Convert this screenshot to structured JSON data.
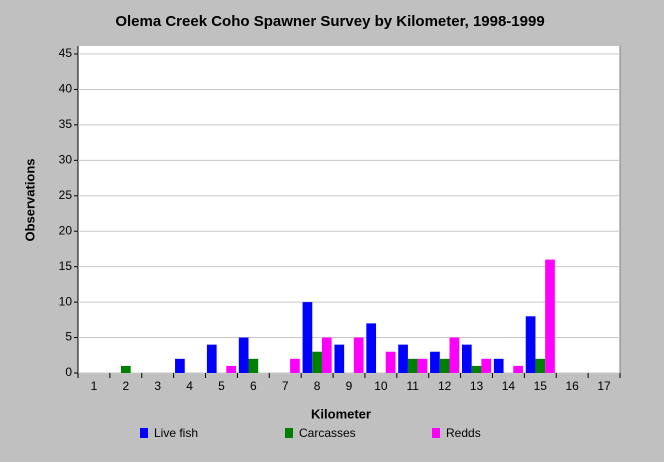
{
  "chart_data": {
    "type": "bar",
    "title": "Olema Creek Coho Spawner Survey by Kilometer, 1998-1999",
    "x_label": "Kilometer",
    "y_label": "Observations",
    "categories": [
      "1",
      "2",
      "3",
      "4",
      "5",
      "6",
      "7",
      "8",
      "9",
      "10",
      "11",
      "12",
      "13",
      "14",
      "15",
      "16",
      "17"
    ],
    "series": [
      {
        "name": "Live fish",
        "color": "#0000ff",
        "values": [
          0,
          0,
          0,
          2,
          4,
          5,
          0,
          10,
          4,
          7,
          4,
          3,
          4,
          2,
          8,
          0,
          0
        ]
      },
      {
        "name": "Carcasses",
        "color": "#008000",
        "values": [
          0,
          1,
          0,
          0,
          0,
          2,
          0,
          3,
          0,
          0,
          2,
          2,
          1,
          0,
          2,
          0,
          0
        ]
      },
      {
        "name": "Redds",
        "color": "#ff00ff",
        "values": [
          0,
          0,
          0,
          0,
          1,
          0,
          2,
          5,
          5,
          3,
          2,
          5,
          2,
          1,
          16,
          0,
          0
        ]
      }
    ],
    "ylim": [
      0,
      45
    ],
    "yticks": [
      0,
      5,
      10,
      15,
      20,
      25,
      30,
      35,
      40,
      45
    ],
    "grid": true
  }
}
